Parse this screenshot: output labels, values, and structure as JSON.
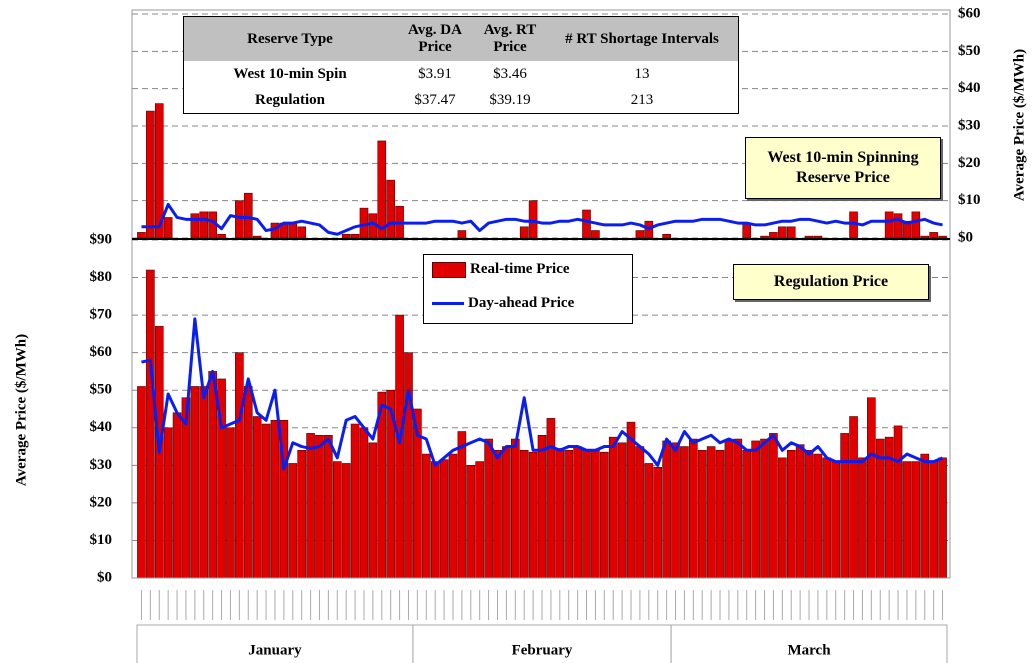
{
  "chart_data": [
    {
      "type": "bar",
      "title": "West 10-min Spinning Reserve Price",
      "ylabel": "Average Price ($/MWh)",
      "axis_side": "right",
      "grid": true,
      "ylim": [
        0,
        60
      ],
      "yticks": [
        {
          "value": 0,
          "label": "$0"
        },
        {
          "value": 10,
          "label": "$10"
        },
        {
          "value": 20,
          "label": "$20"
        },
        {
          "value": 30,
          "label": "$30"
        },
        {
          "value": 40,
          "label": "$40"
        },
        {
          "value": 50,
          "label": "$50"
        },
        {
          "value": 60,
          "label": "$60"
        }
      ],
      "series": [
        {
          "type": "bar",
          "color": "#e00000",
          "values": [
            1.5,
            34,
            36,
            5.5,
            0,
            0,
            6.5,
            7,
            7,
            1,
            0,
            10,
            12,
            0.5,
            0,
            4,
            4,
            4,
            3,
            0,
            0,
            0,
            0,
            1,
            1,
            8,
            6.5,
            26,
            15.5,
            8.5,
            0,
            0,
            0,
            0,
            0,
            0,
            2,
            0,
            0,
            0,
            0,
            0,
            0,
            3,
            10,
            0,
            0,
            0,
            0,
            0,
            7.5,
            2,
            0,
            0,
            0,
            0,
            2,
            4.5,
            0,
            1,
            0,
            0,
            0,
            0,
            0,
            0,
            0,
            0,
            4,
            0,
            0.5,
            1.5,
            3,
            3,
            0,
            0.5,
            0.5,
            0,
            0,
            0,
            7,
            0,
            0,
            0,
            7,
            6.5,
            4.5,
            7,
            0.5,
            1.5,
            0.5
          ]
        },
        {
          "type": "line",
          "color": "#0a1ef0",
          "values": [
            3,
            3,
            3,
            9,
            5.5,
            5,
            5,
            5,
            4.5,
            2.5,
            6,
            5.5,
            5.5,
            5,
            2,
            2.5,
            4,
            4,
            4.5,
            4,
            3.5,
            1.5,
            1,
            2,
            3,
            3.5,
            4,
            2.5,
            4,
            4,
            4,
            4,
            4,
            4.5,
            4.5,
            4.5,
            4,
            4.5,
            2,
            4,
            4.5,
            5,
            5,
            4.5,
            4.5,
            4,
            4,
            4.5,
            4.5,
            5,
            4.5,
            4,
            3.5,
            3.5,
            3.5,
            4,
            3.5,
            2.5,
            3.5,
            4,
            4.5,
            4.5,
            4.5,
            5,
            5,
            5,
            4.5,
            4,
            4,
            3.5,
            3.5,
            4,
            4.5,
            4.5,
            5,
            5,
            4.5,
            4,
            4.5,
            4,
            4,
            3.5,
            4.5,
            4.5,
            4.5,
            5,
            4,
            4.5,
            5,
            4,
            3.5
          ]
        }
      ]
    },
    {
      "type": "bar",
      "title": "Regulation Price",
      "ylabel": "Average Price ($/MWh)",
      "axis_side": "left",
      "grid": true,
      "ylim": [
        0,
        90
      ],
      "yticks": [
        {
          "value": 0,
          "label": "$0"
        },
        {
          "value": 10,
          "label": "$10"
        },
        {
          "value": 20,
          "label": "$20"
        },
        {
          "value": 30,
          "label": "$30"
        },
        {
          "value": 40,
          "label": "$40"
        },
        {
          "value": 50,
          "label": "$50"
        },
        {
          "value": 60,
          "label": "$60"
        },
        {
          "value": 70,
          "label": "$70"
        },
        {
          "value": 80,
          "label": "$80"
        },
        {
          "value": 90,
          "label": "$90"
        }
      ],
      "categories": [
        null,
        null,
        null,
        null,
        null,
        null,
        null,
        null,
        null,
        null,
        null,
        null,
        null,
        null,
        null,
        null,
        null,
        null,
        null,
        null,
        null,
        null,
        null,
        null,
        null,
        null,
        null,
        null,
        null,
        null,
        null,
        null,
        null,
        null,
        null,
        null,
        null,
        null,
        null,
        null,
        null,
        null,
        null,
        null,
        null,
        null,
        null,
        null,
        null,
        null,
        null,
        null,
        null,
        null,
        null,
        null,
        null,
        null,
        null,
        null,
        null,
        null,
        null,
        null,
        null,
        null,
        null,
        null,
        null,
        null,
        null,
        null,
        null,
        null,
        null,
        null,
        null,
        null,
        null,
        null,
        null,
        null,
        null,
        null,
        null,
        null,
        null,
        null,
        null,
        null,
        null
      ],
      "groups": [
        {
          "label": "January",
          "count": 31
        },
        {
          "label": "February",
          "count": 29
        },
        {
          "label": "March",
          "count": 31
        }
      ],
      "series": [
        {
          "name": "Real-time Price",
          "type": "bar",
          "color": "#e00000",
          "values": [
            51,
            82,
            67,
            40,
            44,
            48,
            51,
            51,
            55,
            53,
            40,
            60,
            51,
            43,
            41,
            42,
            42,
            30.5,
            34,
            38.5,
            38,
            38,
            31,
            30.5,
            41,
            40,
            36,
            49.5,
            50,
            70,
            60,
            45,
            33,
            31,
            31.5,
            33,
            39,
            30,
            31,
            37,
            34,
            35,
            37,
            34,
            33.5,
            38,
            42.5,
            34.5,
            34,
            35,
            34,
            34,
            33.5,
            37.5,
            36,
            41.5,
            35,
            30.5,
            29.5,
            36.5,
            36,
            35,
            37,
            34,
            35,
            34,
            36.5,
            37,
            34,
            36.5,
            37,
            38.5,
            32,
            34,
            35.5,
            34,
            33,
            32,
            31,
            38.5,
            43,
            32,
            48,
            37,
            37.5,
            40.5,
            31,
            31,
            33,
            31,
            32
          ]
        },
        {
          "name": "Day-ahead Price",
          "type": "line",
          "color": "#0a1ef0",
          "values": [
            57.5,
            58,
            33.5,
            49,
            44,
            41,
            69,
            48,
            55,
            40,
            41,
            42,
            53,
            44,
            42,
            50,
            29,
            36,
            35,
            34.5,
            35,
            37,
            32,
            42,
            43,
            40,
            37,
            46,
            45,
            36,
            50,
            38,
            37,
            30,
            32,
            34,
            35,
            36,
            37,
            36,
            32,
            35,
            35,
            48,
            34,
            34,
            35,
            34,
            35,
            35,
            34,
            34,
            35,
            35,
            39,
            37,
            35,
            33,
            30,
            37,
            34,
            39,
            36,
            37,
            38,
            36,
            37,
            36,
            34,
            34,
            36,
            38,
            34,
            36,
            35,
            33,
            35,
            32,
            31,
            31,
            31,
            31,
            33,
            32,
            32,
            31,
            33,
            32,
            31,
            31,
            32
          ]
        }
      ]
    }
  ],
  "table": {
    "columns": [
      "Reserve Type",
      "Avg. DA Price",
      "Avg. RT Price",
      "# RT Shortage Intervals"
    ],
    "rows": [
      [
        "West 10-min Spin",
        "$3.91",
        "$3.46",
        "13"
      ],
      [
        "Regulation",
        "$37.47",
        "$39.19",
        "213"
      ]
    ]
  }
}
